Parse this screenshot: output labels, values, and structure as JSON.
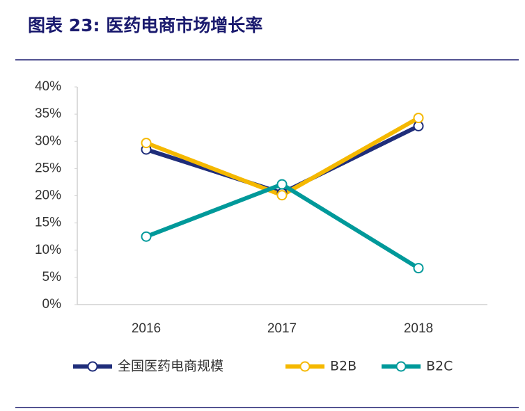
{
  "chart_data": {
    "type": "line",
    "title": "图表 23: 医药电商市场增长率",
    "categories": [
      "2016",
      "2017",
      "2018"
    ],
    "series": [
      {
        "name": "全国医药电商规模",
        "color": "#1f2d7a",
        "values": [
          28.5,
          20.5,
          32.8
        ]
      },
      {
        "name": "B2B",
        "color": "#f5b800",
        "values": [
          29.7,
          20.1,
          34.3
        ]
      },
      {
        "name": "B2C",
        "color": "#00999a",
        "values": [
          12.5,
          22.1,
          6.7
        ]
      }
    ],
    "ylim": [
      0,
      40
    ],
    "yticks": [
      {
        "value": 0,
        "label": "0%"
      },
      {
        "value": 5,
        "label": "5%"
      },
      {
        "value": 10,
        "label": "10%"
      },
      {
        "value": 15,
        "label": "15%"
      },
      {
        "value": 20,
        "label": "20%"
      },
      {
        "value": 25,
        "label": "25%"
      },
      {
        "value": 30,
        "label": "30%"
      },
      {
        "value": 35,
        "label": "35%"
      },
      {
        "value": 40,
        "label": "40%"
      }
    ],
    "grid": false,
    "legend": "bottom"
  }
}
